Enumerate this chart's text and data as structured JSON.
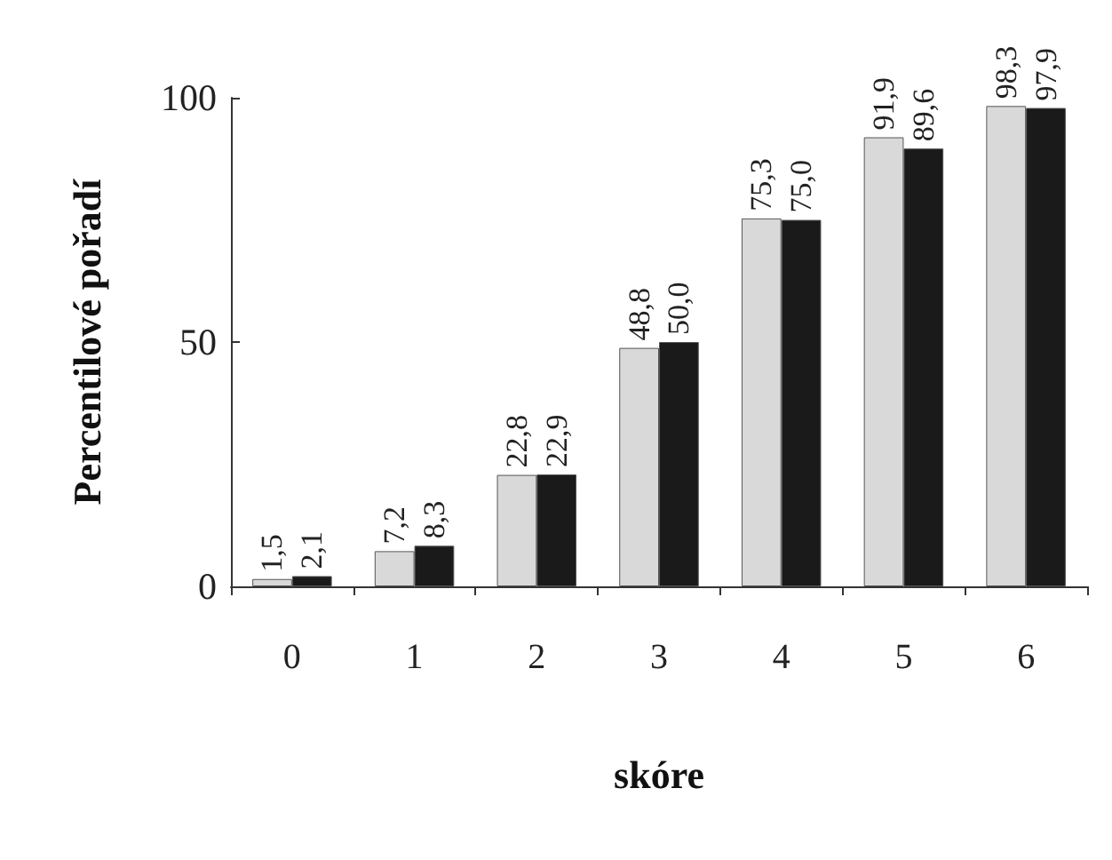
{
  "chart_data": {
    "type": "bar",
    "xlabel": "skóre",
    "ylabel": "Percentilové pořadí",
    "categories": [
      "0",
      "1",
      "2",
      "3",
      "4",
      "5",
      "6"
    ],
    "series": [
      {
        "color": "#d9d9d9",
        "values": [
          1.5,
          7.2,
          22.8,
          48.8,
          75.3,
          91.9,
          98.3
        ],
        "value_labels": [
          "1,5",
          "7,2",
          "22,8",
          "48,8",
          "75,3",
          "91,9",
          "98,3"
        ]
      },
      {
        "color": "#1a1a1a",
        "values": [
          2.1,
          8.3,
          22.9,
          50.0,
          75.0,
          89.6,
          97.9
        ],
        "value_labels": [
          "2,1",
          "8,3",
          "22,9",
          "50,0",
          "75,0",
          "89,6",
          "97,9"
        ]
      }
    ],
    "ylim": [
      0,
      100
    ],
    "yticks": [
      0,
      50,
      100
    ],
    "grid": false
  }
}
